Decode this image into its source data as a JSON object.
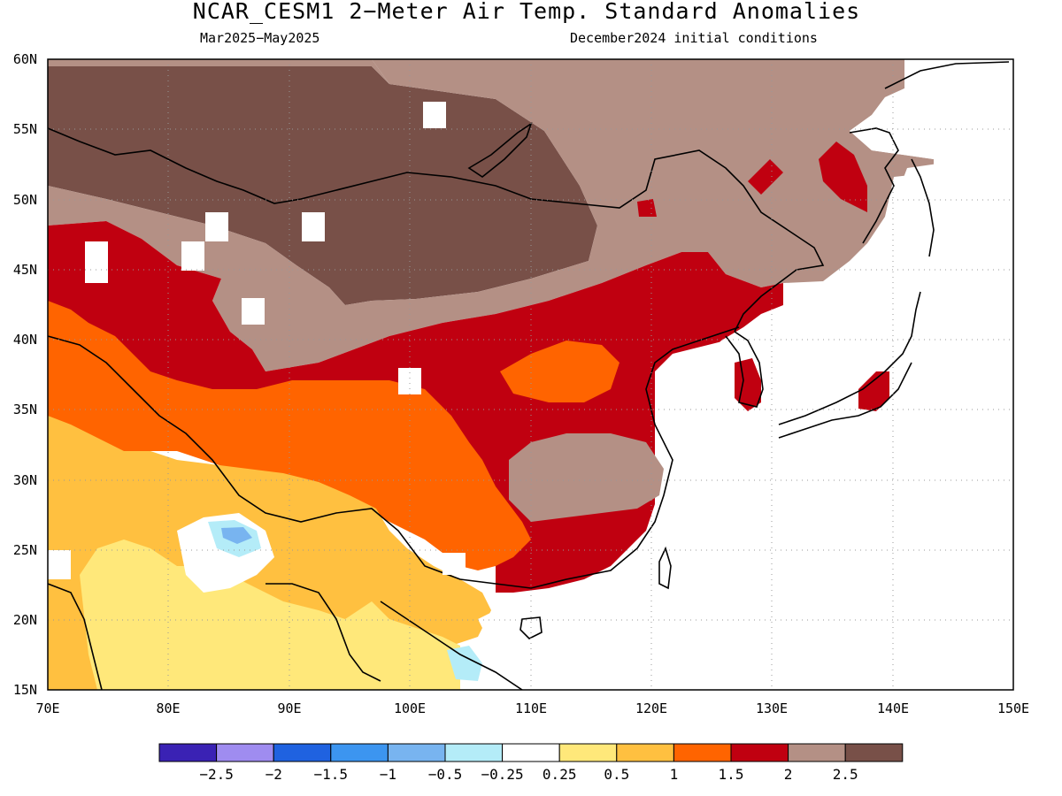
{
  "title": "NCAR_CESM1 2−Meter Air Temp. Standard Anomalies",
  "subtitle_left": "Mar2025−May2025",
  "subtitle_right": "December2024 initial conditions",
  "lat_labels": [
    "60N",
    "55N",
    "50N",
    "45N",
    "40N",
    "35N",
    "30N",
    "25N",
    "20N",
    "15N"
  ],
  "lon_labels": [
    "70E",
    "80E",
    "90E",
    "100E",
    "110E",
    "120E",
    "130E",
    "140E",
    "150E"
  ],
  "colorbar": {
    "colors": [
      "#3a22b4",
      "#9f8cf0",
      "#1f62e0",
      "#3c95f0",
      "#78b4f0",
      "#b4ecf8",
      "#ffffff",
      "#ffe87a",
      "#ffc040",
      "#ff6400",
      "#c00010",
      "#b49085",
      "#785048"
    ],
    "labels": [
      "−2.5",
      "−2",
      "−1.5",
      "−1",
      "−0.5",
      "−0.25",
      "0.25",
      "0.5",
      "1",
      "1.5",
      "2",
      "2.5"
    ]
  },
  "legend_colors": {
    "land_outline": "#000000",
    "grid": "#999999"
  }
}
